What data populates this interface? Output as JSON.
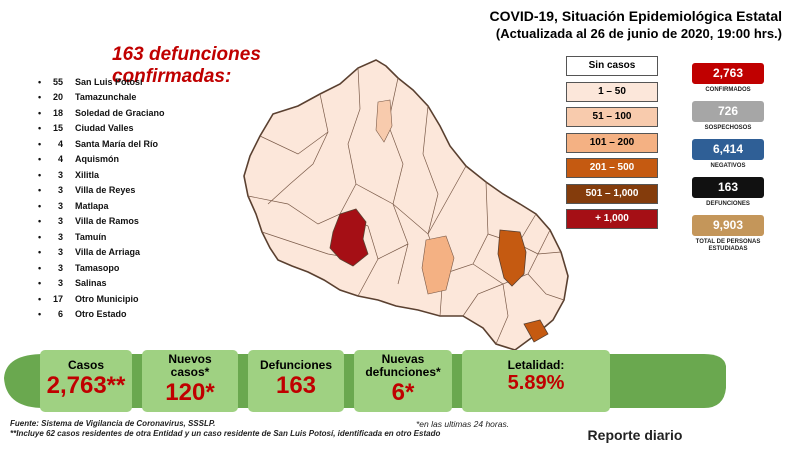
{
  "title": {
    "line1": "COVID-19, Situación Epidemiológica Estatal",
    "line2": "(Actualizada al 26 de junio de 2020, 19:00 hrs.)"
  },
  "deaths_heading": "163 defunciones confirmadas:",
  "municipalities": [
    {
      "count": "55",
      "name": "San Luis Potosí"
    },
    {
      "count": "20",
      "name": "Tamazunchale"
    },
    {
      "count": "18",
      "name": "Soledad de Graciano"
    },
    {
      "count": "15",
      "name": "Ciudad Valles"
    },
    {
      "count": "4",
      "name": "Santa María del Río"
    },
    {
      "count": "4",
      "name": "Aquismón"
    },
    {
      "count": "3",
      "name": "Xilitla"
    },
    {
      "count": "3",
      "name": "Villa de Reyes"
    },
    {
      "count": "3",
      "name": "Matlapa"
    },
    {
      "count": "3",
      "name": "Villa de Ramos"
    },
    {
      "count": "3",
      "name": "Tamuín"
    },
    {
      "count": "3",
      "name": "Villa de Arriaga"
    },
    {
      "count": "3",
      "name": "Tamasopo"
    },
    {
      "count": "3",
      "name": "Salinas"
    },
    {
      "count": "17",
      "name": "Otro Municipio"
    },
    {
      "count": "6",
      "name": "Otro Estado"
    }
  ],
  "legend": [
    {
      "label": "Sin casos",
      "color": "#ffffff"
    },
    {
      "label": "1 – 50",
      "color": "#fce7da"
    },
    {
      "label": "51 – 100",
      "color": "#f8cbad"
    },
    {
      "label": "101 – 200",
      "color": "#f4b183"
    },
    {
      "label": "201 – 500",
      "color": "#c55a11"
    },
    {
      "label": "501 – 1,000",
      "color": "#843c0c"
    },
    {
      "label": "+ 1,000",
      "color": "#a50f15"
    }
  ],
  "stats": [
    {
      "value": "2,763",
      "label": "CONFIRMADOS",
      "color": "#c00000"
    },
    {
      "value": "726",
      "label": "SOSPECHOSOS",
      "color": "#a6a6a6"
    },
    {
      "value": "6,414",
      "label": "NEGATIVOS",
      "color": "#2f5f96"
    },
    {
      "value": "163",
      "label": "DEFUNCIONES",
      "color": "#111111"
    },
    {
      "value": "9,903",
      "label": "TOTAL DE PERSONAS ESTUDIADAS",
      "color": "#c4965a"
    }
  ],
  "cards": [
    {
      "label": "Casos",
      "value": "2,763**"
    },
    {
      "label": "Nuevos casos*",
      "value": "120*"
    },
    {
      "label": "Defunciones",
      "value": "163"
    },
    {
      "label": "Nuevas defunciones*",
      "value": "6*"
    },
    {
      "label": "Letalidad:",
      "value": "5.89%"
    }
  ],
  "footer": {
    "source": "Fuente: Sistema de Vigilancia de Coronavirus, SSSLP.",
    "note": "**Incluye 62 casos residentes de otra Entidad y un caso residente de San Luis Potosí, identificada en otro Estado",
    "footnote": "*en las ultimas 24 horas.",
    "reporte": "Reporte diario"
  }
}
